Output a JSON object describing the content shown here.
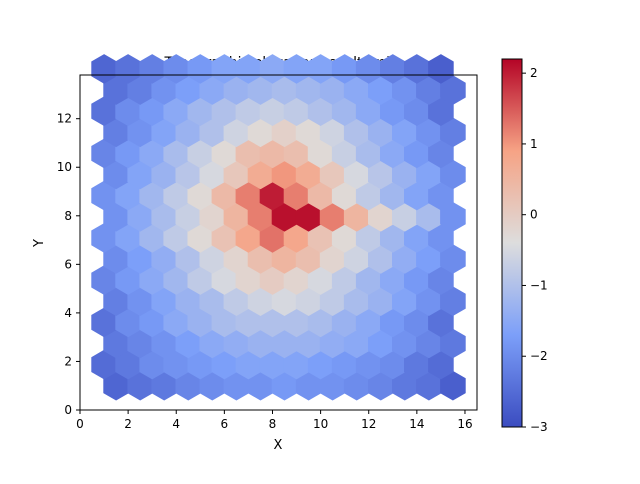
{
  "chart_data": {
    "type": "hexbin",
    "title": "Topographic elevation result (m)",
    "xlabel": "X",
    "ylabel": "Y",
    "xlim": [
      0,
      16.5
    ],
    "ylim": [
      0,
      13.8
    ],
    "xticks": [
      0,
      2,
      4,
      6,
      8,
      10,
      12,
      14,
      16
    ],
    "yticks": [
      0,
      2,
      4,
      6,
      8,
      10,
      12
    ],
    "colormap": "coolwarm",
    "color_range": [
      -3,
      2.2
    ],
    "colorbar_ticks": [
      -3,
      -2,
      -1,
      0,
      1,
      2
    ],
    "grid": false,
    "hex_layout": {
      "row_offsets": [
        1.5,
        1.0
      ],
      "col_step": 1.0,
      "row_step": 0.87,
      "rows": 16,
      "cols": 15
    },
    "values": [
      [
        -2.6,
        -2.4,
        -2.3,
        -2.1,
        -2.0,
        -1.9,
        -1.9,
        -1.8,
        -1.9,
        -1.9,
        -2.0,
        -2.1,
        -2.3,
        -2.4,
        -2.7
      ],
      [
        -2.5,
        -2.3,
        -2.0,
        -1.9,
        -1.8,
        -1.7,
        -1.6,
        -1.6,
        -1.6,
        -1.7,
        -1.8,
        -1.9,
        -2.0,
        -2.3,
        -2.5
      ],
      [
        -2.3,
        -2.1,
        -1.9,
        -1.7,
        -1.5,
        -1.4,
        -1.3,
        -1.3,
        -1.3,
        -1.4,
        -1.5,
        -1.7,
        -1.9,
        -2.1,
        -2.3
      ],
      [
        -2.4,
        -2.0,
        -1.8,
        -1.5,
        -1.3,
        -1.1,
        -1.0,
        -1.0,
        -1.0,
        -1.1,
        -1.3,
        -1.5,
        -1.8,
        -2.0,
        -2.4
      ],
      [
        -2.2,
        -1.9,
        -1.6,
        -1.3,
        -1.1,
        -0.8,
        -0.6,
        -0.5,
        -0.6,
        -0.8,
        -1.1,
        -1.3,
        -1.6,
        -1.9,
        -2.2
      ],
      [
        -2.1,
        -1.8,
        -1.5,
        -1.2,
        -0.8,
        -0.5,
        -0.2,
        0.0,
        -0.2,
        -0.5,
        -0.8,
        -1.2,
        -1.5,
        -1.8,
        -2.1
      ],
      [
        -2.0,
        -1.7,
        -1.4,
        -1.0,
        -0.6,
        -0.2,
        0.3,
        0.5,
        0.3,
        -0.2,
        -0.6,
        -1.0,
        -1.4,
        -1.7,
        -2.0
      ],
      [
        -1.9,
        -1.6,
        -1.2,
        -0.8,
        -0.3,
        0.2,
        0.8,
        1.3,
        0.8,
        0.2,
        -0.3,
        -0.8,
        -1.2,
        -1.6,
        -1.9
      ],
      [
        -1.9,
        -1.5,
        -1.1,
        -0.7,
        -0.2,
        0.5,
        1.2,
        2.1,
        2.1,
        1.2,
        0.5,
        -0.2,
        -0.7,
        -1.1,
        -1.9
      ],
      [
        -1.9,
        -1.6,
        -1.2,
        -0.8,
        -0.3,
        0.4,
        1.2,
        2.0,
        1.2,
        0.4,
        -0.3,
        -0.8,
        -1.2,
        -1.6,
        -1.9
      ],
      [
        -2.0,
        -1.6,
        -1.3,
        -0.9,
        -0.5,
        0.1,
        0.7,
        1.0,
        0.7,
        0.1,
        -0.5,
        -0.9,
        -1.3,
        -1.6,
        -2.0
      ],
      [
        -2.1,
        -1.8,
        -1.5,
        -1.1,
        -0.7,
        -0.3,
        0.3,
        0.4,
        0.3,
        -0.3,
        -0.7,
        -1.1,
        -1.5,
        -1.8,
        -2.1
      ],
      [
        -2.2,
        -1.9,
        -1.6,
        -1.3,
        -1.0,
        -0.6,
        -0.3,
        -0.1,
        -0.3,
        -0.6,
        -1.0,
        -1.3,
        -1.6,
        -1.9,
        -2.2
      ],
      [
        -2.4,
        -2.0,
        -1.8,
        -1.5,
        -1.2,
        -1.0,
        -0.8,
        -0.7,
        -0.8,
        -1.0,
        -1.2,
        -1.5,
        -1.8,
        -2.0,
        -2.4
      ],
      [
        -2.4,
        -2.2,
        -1.9,
        -1.7,
        -1.5,
        -1.3,
        -1.2,
        -1.1,
        -1.2,
        -1.3,
        -1.5,
        -1.7,
        -1.9,
        -2.2,
        -2.4
      ],
      [
        -2.6,
        -2.4,
        -2.2,
        -2.0,
        -1.8,
        -1.6,
        -1.6,
        -1.5,
        -1.6,
        -1.6,
        -1.8,
        -2.0,
        -2.2,
        -2.4,
        -2.7
      ]
    ]
  }
}
